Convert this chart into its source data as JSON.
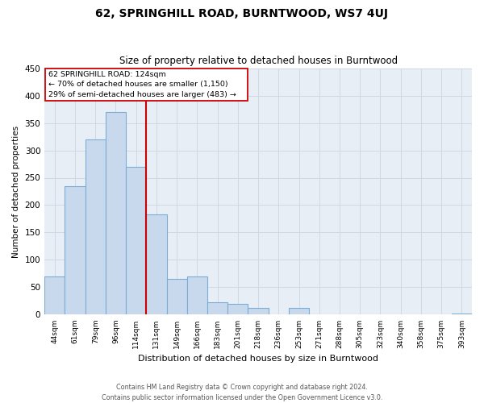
{
  "title": "62, SPRINGHILL ROAD, BURNTWOOD, WS7 4UJ",
  "subtitle": "Size of property relative to detached houses in Burntwood",
  "xlabel": "Distribution of detached houses by size in Burntwood",
  "ylabel": "Number of detached properties",
  "bar_labels": [
    "44sqm",
    "61sqm",
    "79sqm",
    "96sqm",
    "114sqm",
    "131sqm",
    "149sqm",
    "166sqm",
    "183sqm",
    "201sqm",
    "218sqm",
    "236sqm",
    "253sqm",
    "271sqm",
    "288sqm",
    "305sqm",
    "323sqm",
    "340sqm",
    "358sqm",
    "375sqm",
    "393sqm"
  ],
  "bar_values": [
    70,
    235,
    320,
    370,
    270,
    183,
    65,
    70,
    23,
    20,
    12,
    0,
    12,
    0,
    0,
    0,
    0,
    0,
    0,
    0,
    2
  ],
  "bar_color": "#c9d9ed",
  "bar_edge_color": "#7badd4",
  "vline_pos": 5,
  "vline_color": "#cc0000",
  "ann_line1": "62 SPRINGHILL ROAD: 124sqm",
  "ann_line2": "← 70% of detached houses are smaller (1,150)",
  "ann_line3": "29% of semi-detached houses are larger (483) →",
  "ann_box_color": "#cc0000",
  "ylim": [
    0,
    450
  ],
  "yticks": [
    0,
    50,
    100,
    150,
    200,
    250,
    300,
    350,
    400,
    450
  ],
  "footer_line1": "Contains HM Land Registry data © Crown copyright and database right 2024.",
  "footer_line2": "Contains public sector information licensed under the Open Government Licence v3.0.",
  "bg_color": "#ffffff",
  "grid_color": "#d0d8e4",
  "plot_bg_color": "#e8eef5"
}
